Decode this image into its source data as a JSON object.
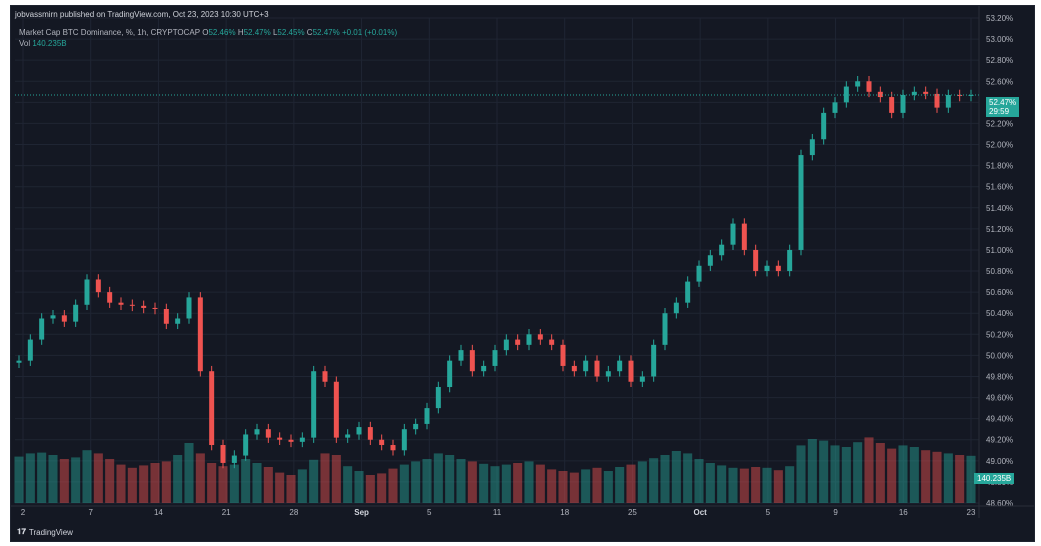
{
  "header": {
    "published_line": "jobvassmirn published on TradingView.com, Oct 23, 2023 10:30 UTC+3"
  },
  "legend": {
    "symbol": "Market Cap BTC Dominance, %, 1h, CRYPTOCAP",
    "o_label": "O",
    "o_value": "52.46%",
    "h_label": "H",
    "h_value": "52.47%",
    "l_label": "L",
    "l_value": "52.45%",
    "c_label": "C",
    "c_value": "52.47%",
    "change": "+0.01 (+0.01%)",
    "vol_label": "Vol",
    "vol_value": "140.235B"
  },
  "price_tag": {
    "price": "52.47%",
    "countdown": "29:59"
  },
  "volume_tag": "140.235B",
  "footer": {
    "brand": "TradingView"
  },
  "colors": {
    "background": "#141823",
    "up": "#26a69a",
    "down": "#ef5350",
    "grid": "#1f2533",
    "text": "#b2b5be"
  },
  "chart_data": {
    "type": "line",
    "title": "Market Cap BTC Dominance, %, 1h, CRYPTOCAP",
    "ylabel": "",
    "xlabel": "",
    "y_scale": "linear",
    "ylim": [
      48.6,
      53.2
    ],
    "y_ticks": [
      "53.20%",
      "53.00%",
      "52.80%",
      "52.60%",
      "52.40%",
      "52.20%",
      "52.00%",
      "51.80%",
      "51.60%",
      "51.40%",
      "51.20%",
      "51.00%",
      "50.80%",
      "50.60%",
      "50.40%",
      "50.20%",
      "50.00%",
      "49.80%",
      "49.60%",
      "49.40%",
      "49.20%",
      "49.00%",
      "48.80%",
      "48.60%"
    ],
    "x_ticks": [
      {
        "label": "2",
        "bold": false
      },
      {
        "label": "7",
        "bold": false
      },
      {
        "label": "14",
        "bold": false
      },
      {
        "label": "21",
        "bold": false
      },
      {
        "label": "28",
        "bold": false
      },
      {
        "label": "Sep",
        "bold": true
      },
      {
        "label": "5",
        "bold": false
      },
      {
        "label": "11",
        "bold": false
      },
      {
        "label": "18",
        "bold": false
      },
      {
        "label": "25",
        "bold": false
      },
      {
        "label": "Oct",
        "bold": true
      },
      {
        "label": "5",
        "bold": false
      },
      {
        "label": "9",
        "bold": false
      },
      {
        "label": "16",
        "bold": false
      },
      {
        "label": "23",
        "bold": false
      }
    ],
    "grid": true,
    "series": [
      {
        "x_days": [
          0,
          1,
          2,
          3,
          4,
          5,
          6,
          7,
          8,
          9,
          10,
          11,
          12,
          13,
          14,
          15,
          16,
          17,
          18,
          19,
          20,
          21,
          22,
          23,
          24,
          25,
          26,
          27,
          28,
          29,
          30,
          31,
          32,
          33,
          34,
          35,
          36,
          37,
          38,
          39,
          40,
          41,
          42,
          43,
          44,
          45,
          46,
          47,
          48,
          49,
          50,
          51,
          52,
          53,
          54,
          55,
          56,
          57,
          58,
          59,
          60,
          61,
          62,
          63,
          64,
          65,
          66,
          67,
          68,
          69,
          70,
          71,
          72,
          73,
          74,
          75,
          76,
          77,
          78,
          79,
          80,
          81,
          82,
          83,
          84
        ],
        "values": [
          49.95,
          50.15,
          50.35,
          50.38,
          50.32,
          50.48,
          50.72,
          50.6,
          50.5,
          50.48,
          50.47,
          50.45,
          50.44,
          50.3,
          50.35,
          50.55,
          49.85,
          49.15,
          48.98,
          49.05,
          49.25,
          49.3,
          49.22,
          49.2,
          49.18,
          49.22,
          49.85,
          49.75,
          49.22,
          49.25,
          49.32,
          49.2,
          49.15,
          49.1,
          49.3,
          49.35,
          49.5,
          49.7,
          49.95,
          50.05,
          49.85,
          49.9,
          50.05,
          50.15,
          50.1,
          50.2,
          50.15,
          50.1,
          49.9,
          49.85,
          49.95,
          49.8,
          49.85,
          49.95,
          49.75,
          49.8,
          50.1,
          50.4,
          50.5,
          50.7,
          50.85,
          50.95,
          51.05,
          51.25,
          51.0,
          50.8,
          50.85,
          50.8,
          51.0,
          51.9,
          52.05,
          52.3,
          52.4,
          52.55,
          52.6,
          52.5,
          52.45,
          52.3,
          52.47,
          52.5,
          52.48,
          52.35,
          52.47,
          52.46,
          52.47
        ],
        "name": ""
      }
    ],
    "volume": {
      "last_value": "140.235B",
      "relative_values": [
        0.58,
        0.62,
        0.63,
        0.6,
        0.55,
        0.57,
        0.66,
        0.62,
        0.55,
        0.48,
        0.44,
        0.47,
        0.5,
        0.52,
        0.6,
        0.75,
        0.62,
        0.5,
        0.46,
        0.48,
        0.55,
        0.5,
        0.45,
        0.38,
        0.35,
        0.42,
        0.54,
        0.62,
        0.6,
        0.46,
        0.4,
        0.35,
        0.37,
        0.43,
        0.48,
        0.52,
        0.55,
        0.62,
        0.6,
        0.55,
        0.52,
        0.49,
        0.46,
        0.48,
        0.5,
        0.52,
        0.48,
        0.42,
        0.4,
        0.38,
        0.42,
        0.44,
        0.4,
        0.45,
        0.48,
        0.52,
        0.56,
        0.6,
        0.65,
        0.62,
        0.55,
        0.5,
        0.47,
        0.44,
        0.43,
        0.45,
        0.44,
        0.41,
        0.46,
        0.72,
        0.8,
        0.78,
        0.72,
        0.7,
        0.76,
        0.82,
        0.75,
        0.68,
        0.72,
        0.7,
        0.66,
        0.64,
        0.62,
        0.6,
        0.59
      ]
    }
  }
}
